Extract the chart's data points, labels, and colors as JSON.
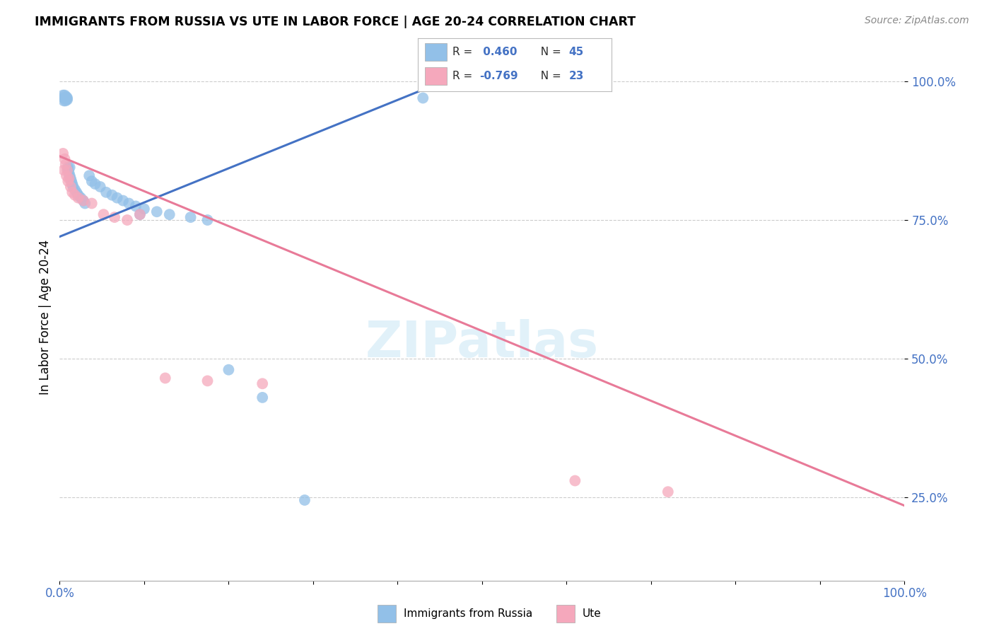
{
  "title": "IMMIGRANTS FROM RUSSIA VS UTE IN LABOR FORCE | AGE 20-24 CORRELATION CHART",
  "source": "Source: ZipAtlas.com",
  "ylabel": "In Labor Force | Age 20-24",
  "xlim": [
    0.0,
    1.0
  ],
  "ylim": [
    0.1,
    1.05
  ],
  "yticks": [
    0.25,
    0.5,
    0.75,
    1.0
  ],
  "ytick_labels": [
    "25.0%",
    "50.0%",
    "75.0%",
    "100.0%"
  ],
  "xticks": [
    0.0,
    0.1,
    0.2,
    0.3,
    0.4,
    0.5,
    0.6,
    0.7,
    0.8,
    0.9,
    1.0
  ],
  "xtick_labels": [
    "0.0%",
    "",
    "",
    "",
    "",
    "",
    "",
    "",
    "",
    "",
    "100.0%"
  ],
  "legend_R_blue": "R =  0.460",
  "legend_N_blue": "N = 45",
  "legend_R_pink": "R = -0.769",
  "legend_N_pink": "N = 23",
  "blue_color": "#92c0e8",
  "pink_color": "#f5a8bc",
  "blue_line_color": "#4472c4",
  "pink_line_color": "#e87a98",
  "text_dark": "#2d2d2d",
  "blue_scatter_x": [
    0.004,
    0.005,
    0.005,
    0.006,
    0.007,
    0.007,
    0.008,
    0.008,
    0.009,
    0.009,
    0.01,
    0.01,
    0.011,
    0.012,
    0.012,
    0.013,
    0.014,
    0.015,
    0.016,
    0.018,
    0.02,
    0.022,
    0.025,
    0.028,
    0.03,
    0.035,
    0.038,
    0.042,
    0.048,
    0.055,
    0.062,
    0.068,
    0.075,
    0.082,
    0.09,
    0.1,
    0.115,
    0.13,
    0.155,
    0.175,
    0.2,
    0.24,
    0.29,
    0.43,
    0.095
  ],
  "blue_scatter_y": [
    0.975,
    0.965,
    0.97,
    0.975,
    0.965,
    0.97,
    0.968,
    0.972,
    0.967,
    0.97,
    0.845,
    0.84,
    0.835,
    0.83,
    0.845,
    0.825,
    0.82,
    0.815,
    0.81,
    0.805,
    0.8,
    0.795,
    0.79,
    0.785,
    0.78,
    0.83,
    0.82,
    0.815,
    0.81,
    0.8,
    0.795,
    0.79,
    0.785,
    0.78,
    0.775,
    0.77,
    0.765,
    0.76,
    0.755,
    0.75,
    0.48,
    0.43,
    0.245,
    0.97,
    0.76
  ],
  "pink_scatter_x": [
    0.004,
    0.005,
    0.006,
    0.007,
    0.008,
    0.009,
    0.01,
    0.011,
    0.013,
    0.015,
    0.018,
    0.022,
    0.028,
    0.038,
    0.052,
    0.065,
    0.08,
    0.095,
    0.125,
    0.175,
    0.24,
    0.61,
    0.72
  ],
  "pink_scatter_y": [
    0.87,
    0.84,
    0.86,
    0.85,
    0.83,
    0.84,
    0.82,
    0.825,
    0.81,
    0.8,
    0.795,
    0.79,
    0.785,
    0.78,
    0.76,
    0.755,
    0.75,
    0.76,
    0.465,
    0.46,
    0.455,
    0.28,
    0.26
  ],
  "blue_trendline_x": [
    0.0,
    0.43
  ],
  "blue_trendline_y": [
    0.72,
    0.985
  ],
  "pink_trendline_x": [
    0.0,
    1.0
  ],
  "pink_trendline_y": [
    0.865,
    0.235
  ],
  "figsize": [
    14.06,
    8.92
  ],
  "dpi": 100
}
